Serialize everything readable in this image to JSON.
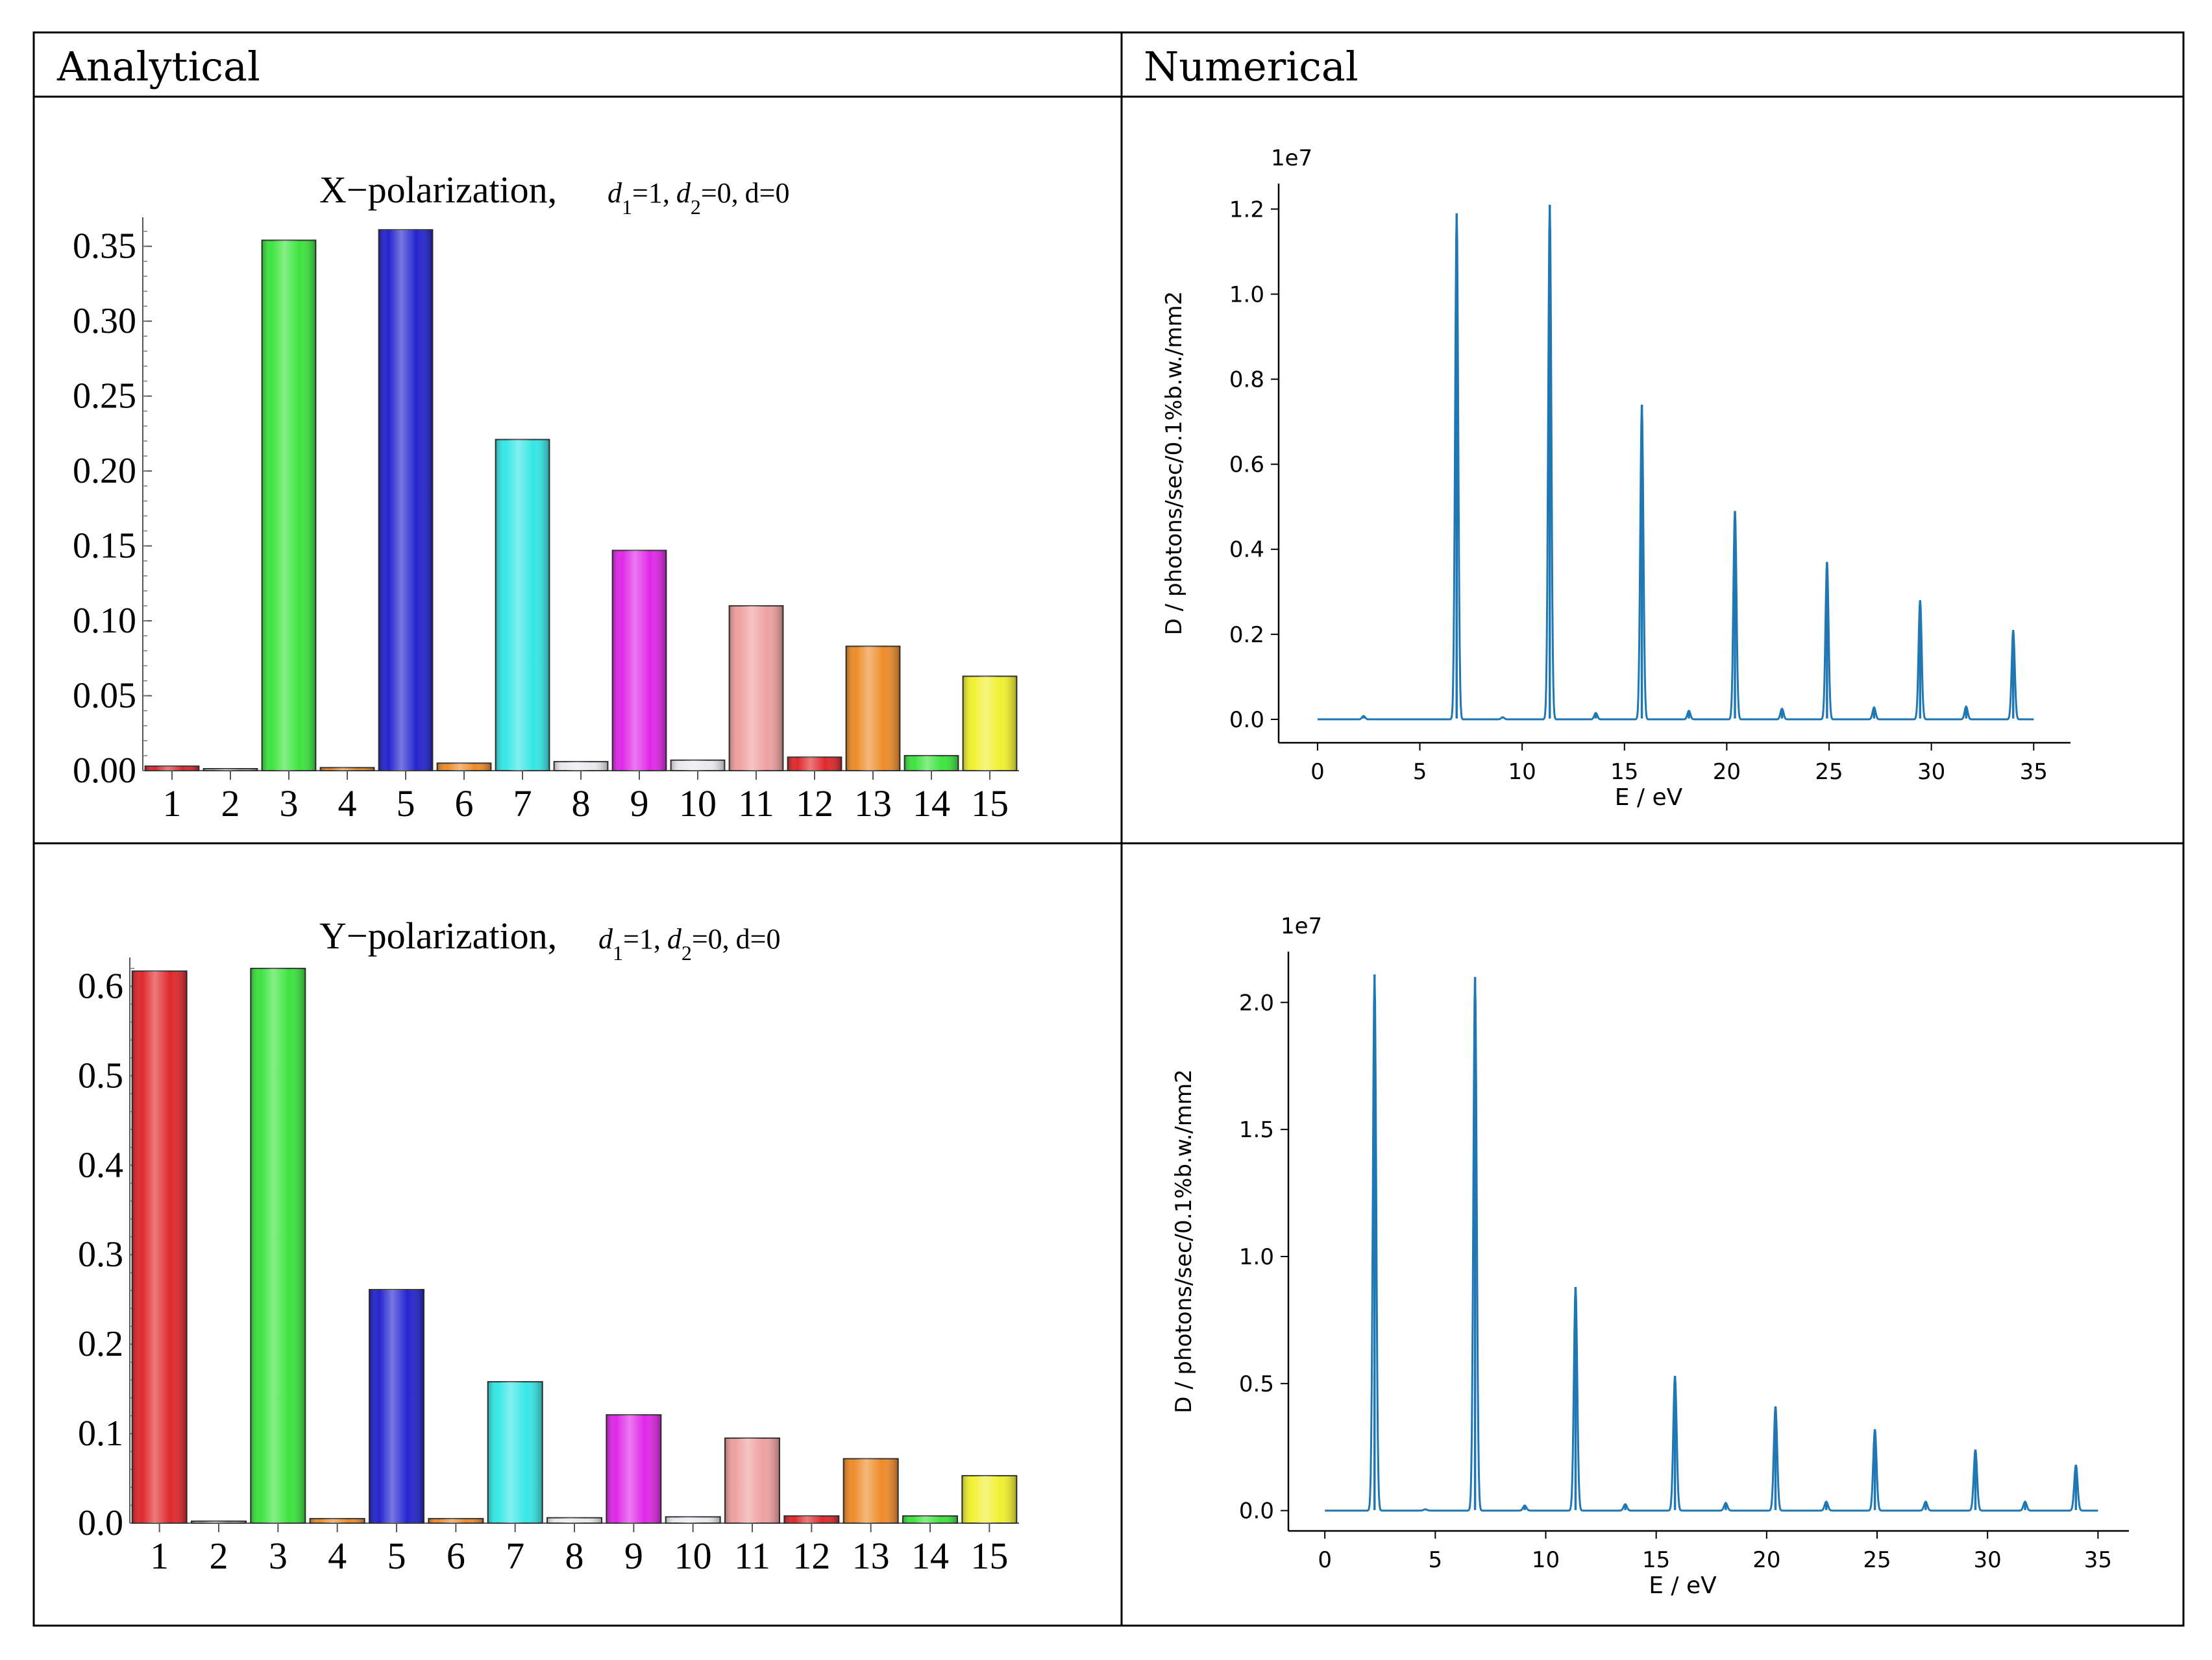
{
  "headers": {
    "left": "Analytical",
    "right": "Numerical"
  },
  "colors": {
    "red": "#e0282c",
    "gray": "#c8c8c8",
    "green": "#3de43f",
    "white": "#e9e9ee",
    "blue": "#2424d0",
    "orange": "#ee8c2a",
    "cyan": "#36e7e7",
    "magenta": "#e028e8",
    "pink": "#efa0a0",
    "yellow": "#f0f030",
    "line": "#1f77b4"
  },
  "chart_data": [
    {
      "type": "bar",
      "title": "X−polarization,",
      "subtitle": "d1=1, d2=0, d=0",
      "subtitle_parts": {
        "d1": "d",
        "d1_sub": "1",
        "d1_eq": "=1,",
        "d2": "d",
        "d2_sub": "2",
        "d2_eq": "=0,",
        "d": "d=0"
      },
      "categories": [
        "1",
        "2",
        "3",
        "4",
        "5",
        "6",
        "7",
        "8",
        "9",
        "10",
        "11",
        "12",
        "13",
        "14",
        "15"
      ],
      "values": [
        0.003,
        0.0,
        0.354,
        0.002,
        0.361,
        0.005,
        0.221,
        0.006,
        0.147,
        0.007,
        0.11,
        0.009,
        0.083,
        0.01,
        0.063
      ],
      "bar_colors": [
        "red",
        "gray",
        "green",
        "orange",
        "blue",
        "orange",
        "cyan",
        "white",
        "magenta",
        "white",
        "pink",
        "red",
        "orange",
        "green",
        "yellow"
      ],
      "yticks": [
        "0.00",
        "0.05",
        "0.10",
        "0.15",
        "0.20",
        "0.25",
        "0.30",
        "0.35"
      ],
      "ytick_values": [
        0,
        0.05,
        0.1,
        0.15,
        0.2,
        0.25,
        0.3,
        0.35
      ],
      "ylim": [
        0,
        0.365
      ],
      "xlabel": "",
      "ylabel": ""
    },
    {
      "type": "line",
      "exponent": "1e7",
      "xlabel": "E / eV",
      "ylabel": "D / photons/sec/0.1%b.w./mm2",
      "xticks": [
        "0",
        "5",
        "10",
        "15",
        "20",
        "25",
        "30",
        "35"
      ],
      "xtick_values": [
        0,
        5,
        10,
        15,
        20,
        25,
        30,
        35
      ],
      "yticks": [
        "0.0",
        "0.2",
        "0.4",
        "0.6",
        "0.8",
        "1.0",
        "1.2"
      ],
      "ytick_values": [
        0,
        0.2,
        0.4,
        0.6,
        0.8,
        1.0,
        1.2
      ],
      "xlim": [
        -1.9,
        36.8
      ],
      "ylim": [
        -0.055,
        1.26
      ],
      "peaks_x": [
        2.25,
        6.8,
        9.05,
        11.35,
        13.6,
        15.85,
        18.15,
        20.4,
        22.7,
        24.9,
        27.2,
        29.45,
        31.7,
        34.0
      ],
      "peaks_y": [
        0.008,
        1.19,
        0.005,
        1.21,
        0.015,
        0.74,
        0.02,
        0.49,
        0.025,
        0.37,
        0.028,
        0.28,
        0.03,
        0.21
      ],
      "x_range": [
        0,
        35
      ]
    },
    {
      "type": "bar",
      "title": "Y−polarization,",
      "subtitle": "d1=1, d2=0, d=0",
      "subtitle_parts": {
        "d1": "d",
        "d1_sub": "1",
        "d1_eq": "=1,",
        "d2": "d",
        "d2_sub": "2",
        "d2_eq": "=0,",
        "d": "d=0"
      },
      "categories": [
        "1",
        "2",
        "3",
        "4",
        "5",
        "6",
        "7",
        "8",
        "9",
        "10",
        "11",
        "12",
        "13",
        "14",
        "15"
      ],
      "values": [
        0.617,
        0.002,
        0.62,
        0.005,
        0.261,
        0.005,
        0.158,
        0.006,
        0.121,
        0.007,
        0.095,
        0.008,
        0.072,
        0.008,
        0.053
      ],
      "bar_colors": [
        "red",
        "gray",
        "green",
        "orange",
        "blue",
        "orange",
        "cyan",
        "white",
        "magenta",
        "white",
        "pink",
        "red",
        "orange",
        "green",
        "yellow"
      ],
      "yticks": [
        "0.0",
        "0.1",
        "0.2",
        "0.3",
        "0.4",
        "0.5",
        "0.6"
      ],
      "ytick_values": [
        0,
        0.1,
        0.2,
        0.3,
        0.4,
        0.5,
        0.6
      ],
      "ylim": [
        0,
        0.625
      ],
      "xlabel": "",
      "ylabel": ""
    },
    {
      "type": "line",
      "exponent": "1e7",
      "xlabel": "E / eV",
      "ylabel": "D / photons/sec/0.1%b.w./mm2",
      "xticks": [
        "0",
        "5",
        "10",
        "15",
        "20",
        "25",
        "30",
        "35"
      ],
      "xtick_values": [
        0,
        5,
        10,
        15,
        20,
        25,
        30,
        35
      ],
      "yticks": [
        "0.0",
        "0.5",
        "1.0",
        "1.5",
        "2.0"
      ],
      "ytick_values": [
        0,
        0.5,
        1.0,
        1.5,
        2.0
      ],
      "xlim": [
        -1.65,
        36.4
      ],
      "ylim": [
        -0.08,
        2.2
      ],
      "peaks_x": [
        2.25,
        4.55,
        6.8,
        9.05,
        11.35,
        13.6,
        15.85,
        18.15,
        20.4,
        22.7,
        24.9,
        27.2,
        29.45,
        31.7,
        34.0
      ],
      "peaks_y": [
        2.11,
        0.005,
        2.1,
        0.02,
        0.88,
        0.025,
        0.53,
        0.03,
        0.41,
        0.035,
        0.32,
        0.035,
        0.24,
        0.035,
        0.18
      ],
      "x_range": [
        0,
        35
      ]
    }
  ]
}
